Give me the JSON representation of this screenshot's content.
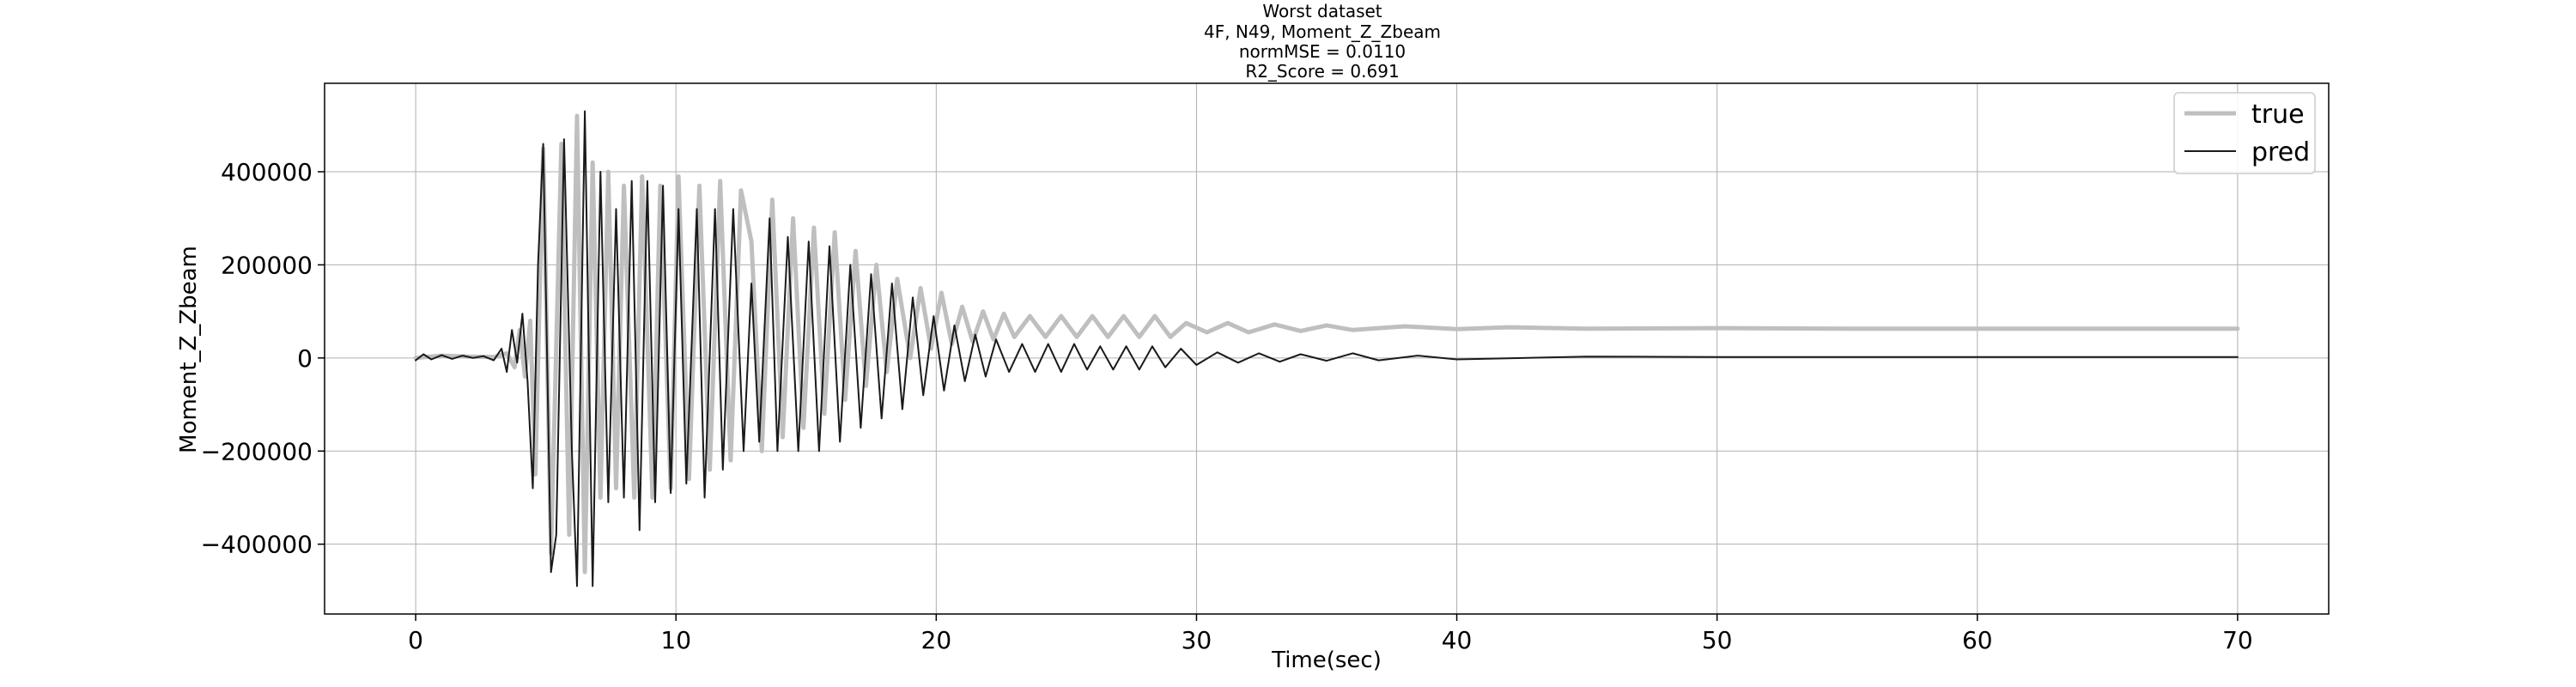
{
  "chart_data": {
    "type": "line",
    "title_lines": [
      "Worst dataset",
      "4F, N49, Moment_Z_Zbeam",
      "normMSE = 0.0110",
      "R2_Score = 0.691"
    ],
    "xlabel": "Time(sec)",
    "ylabel": "Moment_Z_Zbeam",
    "xlim": [
      -3.5,
      73.5
    ],
    "ylim": [
      -550000,
      590000
    ],
    "xticks": [
      0,
      10,
      20,
      30,
      40,
      50,
      60,
      70
    ],
    "xtick_labels": [
      "0",
      "10",
      "20",
      "30",
      "40",
      "50",
      "60",
      "70"
    ],
    "yticks": [
      -400000,
      -200000,
      0,
      200000,
      400000
    ],
    "ytick_labels": [
      "−400000",
      "−200000",
      "0",
      "200000",
      "400000"
    ],
    "grid": true,
    "legend_position": "top-right",
    "series": [
      {
        "name": "true",
        "color": "#bfbfbf",
        "points": [
          [
            0.0,
            0
          ],
          [
            1.0,
            5000
          ],
          [
            2.0,
            3000
          ],
          [
            3.0,
            2000
          ],
          [
            3.5,
            10000
          ],
          [
            3.8,
            -20000
          ],
          [
            4.0,
            60000
          ],
          [
            4.2,
            -40000
          ],
          [
            4.4,
            80000
          ],
          [
            4.6,
            -250000
          ],
          [
            4.9,
            450000
          ],
          [
            5.2,
            -420000
          ],
          [
            5.6,
            460000
          ],
          [
            5.9,
            -380000
          ],
          [
            6.2,
            520000
          ],
          [
            6.5,
            -460000
          ],
          [
            6.8,
            420000
          ],
          [
            7.1,
            -300000
          ],
          [
            7.4,
            400000
          ],
          [
            7.7,
            -280000
          ],
          [
            8.0,
            370000
          ],
          [
            8.4,
            -300000
          ],
          [
            8.7,
            390000
          ],
          [
            9.1,
            -300000
          ],
          [
            9.4,
            370000
          ],
          [
            9.8,
            -280000
          ],
          [
            10.1,
            390000
          ],
          [
            10.5,
            -260000
          ],
          [
            10.9,
            370000
          ],
          [
            11.3,
            -240000
          ],
          [
            11.7,
            380000
          ],
          [
            12.1,
            -220000
          ],
          [
            12.5,
            360000
          ],
          [
            12.9,
            250000
          ],
          [
            13.3,
            -200000
          ],
          [
            13.7,
            340000
          ],
          [
            14.1,
            -170000
          ],
          [
            14.5,
            300000
          ],
          [
            14.9,
            -150000
          ],
          [
            15.3,
            280000
          ],
          [
            15.7,
            -120000
          ],
          [
            16.1,
            270000
          ],
          [
            16.5,
            -90000
          ],
          [
            16.9,
            230000
          ],
          [
            17.3,
            -60000
          ],
          [
            17.7,
            200000
          ],
          [
            18.1,
            -30000
          ],
          [
            18.5,
            170000
          ],
          [
            19.0,
            0
          ],
          [
            19.4,
            150000
          ],
          [
            19.8,
            20000
          ],
          [
            20.2,
            140000
          ],
          [
            20.6,
            30000
          ],
          [
            21.0,
            110000
          ],
          [
            21.4,
            35000
          ],
          [
            21.8,
            100000
          ],
          [
            22.2,
            40000
          ],
          [
            22.6,
            95000
          ],
          [
            23.0,
            45000
          ],
          [
            23.6,
            90000
          ],
          [
            24.2,
            45000
          ],
          [
            24.8,
            90000
          ],
          [
            25.4,
            45000
          ],
          [
            26.0,
            90000
          ],
          [
            26.6,
            45000
          ],
          [
            27.2,
            90000
          ],
          [
            27.8,
            45000
          ],
          [
            28.4,
            90000
          ],
          [
            29.0,
            45000
          ],
          [
            29.6,
            75000
          ],
          [
            30.4,
            55000
          ],
          [
            31.2,
            75000
          ],
          [
            32.0,
            55000
          ],
          [
            33.0,
            72000
          ],
          [
            34.0,
            58000
          ],
          [
            35.0,
            70000
          ],
          [
            36.0,
            60000
          ],
          [
            38.0,
            68000
          ],
          [
            40.0,
            62000
          ],
          [
            42.0,
            66000
          ],
          [
            45.0,
            63000
          ],
          [
            50.0,
            64000
          ],
          [
            55.0,
            63000
          ],
          [
            60.0,
            63000
          ],
          [
            65.0,
            63000
          ],
          [
            70.0,
            63000
          ]
        ]
      },
      {
        "name": "pred",
        "color": "#1a1a1a",
        "points": [
          [
            0.0,
            -5000
          ],
          [
            0.3,
            8000
          ],
          [
            0.6,
            -3000
          ],
          [
            1.0,
            6000
          ],
          [
            1.4,
            -2000
          ],
          [
            1.8,
            5000
          ],
          [
            2.2,
            0
          ],
          [
            2.6,
            4000
          ],
          [
            3.0,
            -5000
          ],
          [
            3.3,
            20000
          ],
          [
            3.5,
            -30000
          ],
          [
            3.7,
            60000
          ],
          [
            3.9,
            -10000
          ],
          [
            4.1,
            95000
          ],
          [
            4.3,
            -50000
          ],
          [
            4.5,
            -280000
          ],
          [
            4.7,
            200000
          ],
          [
            4.9,
            460000
          ],
          [
            5.2,
            -460000
          ],
          [
            5.4,
            -380000
          ],
          [
            5.7,
            470000
          ],
          [
            6.0,
            -200000
          ],
          [
            6.2,
            -490000
          ],
          [
            6.5,
            530000
          ],
          [
            6.8,
            -490000
          ],
          [
            7.1,
            400000
          ],
          [
            7.4,
            -310000
          ],
          [
            7.7,
            320000
          ],
          [
            8.0,
            -300000
          ],
          [
            8.3,
            380000
          ],
          [
            8.6,
            -370000
          ],
          [
            8.9,
            380000
          ],
          [
            9.2,
            -310000
          ],
          [
            9.5,
            370000
          ],
          [
            9.8,
            -290000
          ],
          [
            10.1,
            320000
          ],
          [
            10.4,
            -270000
          ],
          [
            10.8,
            320000
          ],
          [
            11.1,
            -300000
          ],
          [
            11.5,
            320000
          ],
          [
            11.8,
            -240000
          ],
          [
            12.2,
            320000
          ],
          [
            12.6,
            -200000
          ],
          [
            12.9,
            160000
          ],
          [
            13.2,
            -180000
          ],
          [
            13.6,
            300000
          ],
          [
            13.9,
            -200000
          ],
          [
            14.3,
            260000
          ],
          [
            14.7,
            -200000
          ],
          [
            15.1,
            250000
          ],
          [
            15.5,
            -200000
          ],
          [
            15.9,
            240000
          ],
          [
            16.3,
            -180000
          ],
          [
            16.7,
            200000
          ],
          [
            17.1,
            -150000
          ],
          [
            17.5,
            180000
          ],
          [
            17.9,
            -130000
          ],
          [
            18.3,
            160000
          ],
          [
            18.7,
            -110000
          ],
          [
            19.1,
            130000
          ],
          [
            19.5,
            -80000
          ],
          [
            19.9,
            90000
          ],
          [
            20.3,
            -70000
          ],
          [
            20.7,
            70000
          ],
          [
            21.1,
            -50000
          ],
          [
            21.5,
            50000
          ],
          [
            21.9,
            -40000
          ],
          [
            22.3,
            40000
          ],
          [
            22.8,
            -30000
          ],
          [
            23.3,
            30000
          ],
          [
            23.8,
            -30000
          ],
          [
            24.3,
            30000
          ],
          [
            24.8,
            -30000
          ],
          [
            25.3,
            30000
          ],
          [
            25.8,
            -25000
          ],
          [
            26.3,
            25000
          ],
          [
            26.8,
            -25000
          ],
          [
            27.3,
            25000
          ],
          [
            27.8,
            -25000
          ],
          [
            28.3,
            25000
          ],
          [
            28.8,
            -20000
          ],
          [
            29.4,
            20000
          ],
          [
            30.0,
            -15000
          ],
          [
            30.8,
            12000
          ],
          [
            31.6,
            -10000
          ],
          [
            32.4,
            10000
          ],
          [
            33.2,
            -8000
          ],
          [
            34.0,
            8000
          ],
          [
            35.0,
            -6000
          ],
          [
            36.0,
            10000
          ],
          [
            37.0,
            -5000
          ],
          [
            38.5,
            5000
          ],
          [
            40.0,
            -3000
          ],
          [
            45.0,
            3000
          ],
          [
            50.0,
            2000
          ],
          [
            55.0,
            2000
          ],
          [
            60.0,
            2000
          ],
          [
            65.0,
            2000
          ],
          [
            70.0,
            2000
          ]
        ]
      }
    ]
  }
}
